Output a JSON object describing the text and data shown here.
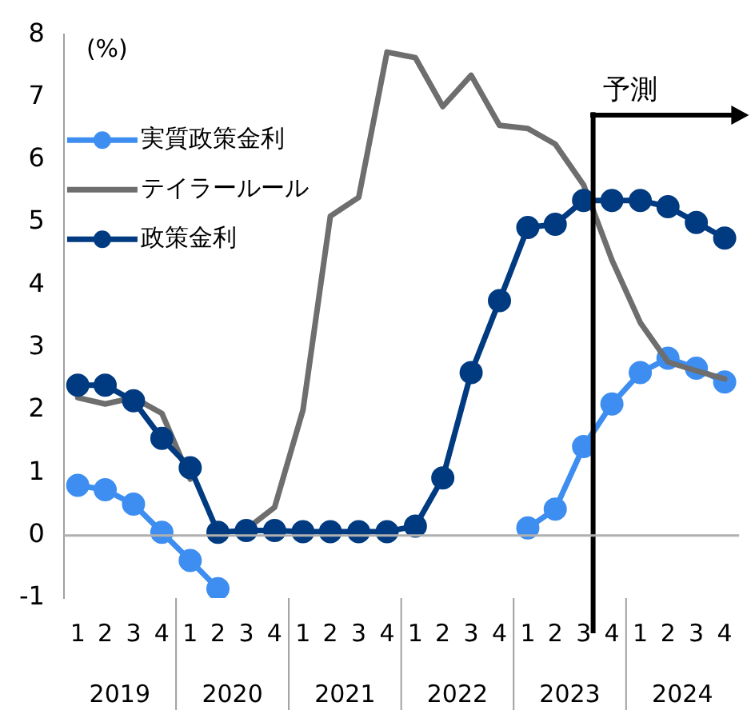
{
  "chart_data": {
    "type": "line",
    "ylabel": "(%)",
    "x": [
      "2019-02-15",
      "2019-05-15",
      "2019-08-15",
      "2019-11-15",
      "2020-02-15",
      "2020-05-15",
      "2020-08-15",
      "2020-11-15",
      "2021-02-15",
      "2021-05-15",
      "2021-08-15",
      "2021-11-15",
      "2022-02-15",
      "2022-05-15",
      "2022-08-15",
      "2022-11-15",
      "2023-02-15",
      "2023-05-15",
      "2023-08-15",
      "2023-11-15",
      "2024-02-15",
      "2024-05-15",
      "2024-08-15",
      "2024-11-15"
    ],
    "xlim": [
      "2019-01-01",
      "2025-01-01"
    ],
    "xticks": [
      {
        "value": "2019-02-15",
        "label": "1"
      },
      {
        "value": "2019-05-15",
        "label": "2"
      },
      {
        "value": "2019-08-15",
        "label": "3"
      },
      {
        "value": "2019-11-15",
        "label": "4"
      },
      {
        "value": "2020-02-15",
        "label": "1"
      },
      {
        "value": "2020-05-15",
        "label": "2"
      },
      {
        "value": "2020-08-15",
        "label": "3"
      },
      {
        "value": "2020-11-15",
        "label": "4"
      },
      {
        "value": "2021-02-15",
        "label": "1"
      },
      {
        "value": "2021-05-15",
        "label": "2"
      },
      {
        "value": "2021-08-15",
        "label": "3"
      },
      {
        "value": "2021-11-15",
        "label": "4"
      },
      {
        "value": "2022-02-15",
        "label": "1"
      },
      {
        "value": "2022-05-15",
        "label": "2"
      },
      {
        "value": "2022-08-15",
        "label": "3"
      },
      {
        "value": "2022-11-15",
        "label": "4"
      },
      {
        "value": "2023-02-15",
        "label": "1"
      },
      {
        "value": "2023-05-15",
        "label": "2"
      },
      {
        "value": "2023-08-15",
        "label": "3"
      },
      {
        "value": "2023-11-15",
        "label": "4"
      },
      {
        "value": "2024-02-15",
        "label": "1"
      },
      {
        "value": "2024-05-15",
        "label": "2"
      },
      {
        "value": "2024-08-15",
        "label": "3"
      },
      {
        "value": "2024-11-15",
        "label": "4"
      }
    ],
    "ylim": [
      -1,
      8
    ],
    "yticks": [
      -1,
      0,
      1,
      2,
      3,
      4,
      5,
      6,
      7,
      8
    ],
    "series": [
      {
        "name": "実質政策金利",
        "color": "#3d8ef0",
        "marker": "circle",
        "values": [
          0.8,
          0.73,
          0.5,
          0.05,
          -0.4,
          -0.85,
          null,
          null,
          null,
          null,
          null,
          null,
          null,
          null,
          null,
          null,
          0.12,
          0.42,
          1.42,
          2.1,
          2.6,
          2.83,
          2.67,
          2.45
        ]
      },
      {
        "name": "テイラールール",
        "color": "#6e6e6e",
        "marker": "none",
        "values": [
          2.2,
          2.1,
          2.2,
          1.95,
          0.9,
          null,
          0.1,
          0.45,
          2.0,
          5.1,
          5.4,
          7.72,
          7.63,
          6.85,
          7.35,
          6.55,
          6.5,
          6.25,
          5.6,
          4.4,
          3.4,
          2.77,
          2.63,
          2.5
        ]
      },
      {
        "name": "政策金利",
        "color": "#003a80",
        "marker": "circle",
        "values": [
          2.4,
          2.4,
          2.15,
          1.55,
          1.08,
          0.05,
          0.08,
          0.08,
          0.06,
          0.06,
          0.06,
          0.06,
          0.15,
          0.92,
          2.6,
          3.75,
          4.92,
          4.97,
          5.35,
          5.35,
          5.35,
          5.25,
          5.0,
          4.75
        ]
      }
    ],
    "ref_lines": [
      {
        "axis": "x",
        "value": "2023-09-15",
        "label": "予測",
        "color": "#000000"
      },
      {
        "axis": "y",
        "value": 0,
        "color": "#b0b0b0"
      }
    ],
    "annotations": [
      "2019",
      "2020",
      "2021",
      "2022",
      "2023",
      "2024"
    ],
    "grid": false,
    "legend": "top left"
  }
}
